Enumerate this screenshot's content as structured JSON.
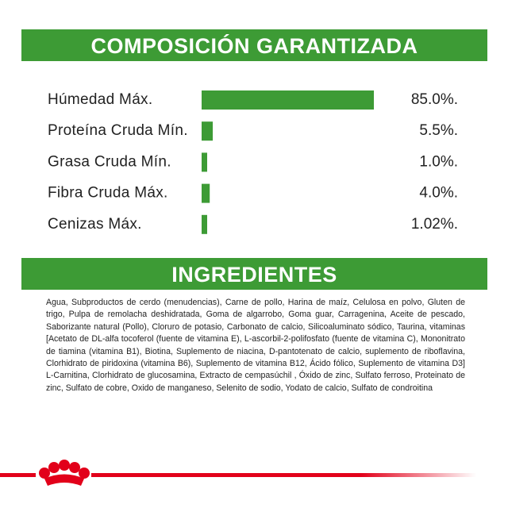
{
  "chart_data": {
    "type": "hbar",
    "title": "COMPOSICIÓN GARANTIZADA",
    "categories": [
      "Húmedad Máx.",
      "Proteína Cruda Mín.",
      "Grasa Cruda Mín.",
      "Fibra Cruda Máx.",
      "Cenizas Máx."
    ],
    "values": [
      85.0,
      5.5,
      1.0,
      4.0,
      1.02
    ],
    "value_labels": [
      "85.0%.",
      "5.5%.",
      "1.0%.",
      "4.0%.",
      "1.02%."
    ],
    "color": "#3d9b35"
  },
  "ingredients": {
    "title": "INGREDIENTES",
    "text": "Agua, Subproductos de cerdo (menudencias), Carne de pollo, Harina de maíz, Celulosa en polvo, Gluten de trigo, Pulpa de remolacha deshidratada, Goma de algarrobo, Goma guar, Carragenina, Aceite de pescado, Saborizante natural (Pollo), Cloruro de potasio, Carbonato de calcio, Silicoaluminato sódico, Taurina, vitaminas [Acetato de DL-alfa tocoferol (fuente de vitamina E), L-ascorbil-2-polifosfato (fuente de vitamina C), Mononitrato de tiamina (vitamina B1), Biotina, Suplemento de niacina, D-pantotenato de calcio, suplemento de riboflavina, Clorhidrato de piridoxina (vitamina B6), Suplemento de vitamina B12, Ácido fólico, Suplemento de vitamina D3] L-Carnitina, Clorhidrato de glucosamina, Extracto de cempasúchil , Óxido de zinc, Sulfato ferroso, Proteinato de zinc, Sulfato de cobre, Oxido de manganeso, Selenito de sodio, Yodato de calcio, Sulfato de condroitina"
  }
}
